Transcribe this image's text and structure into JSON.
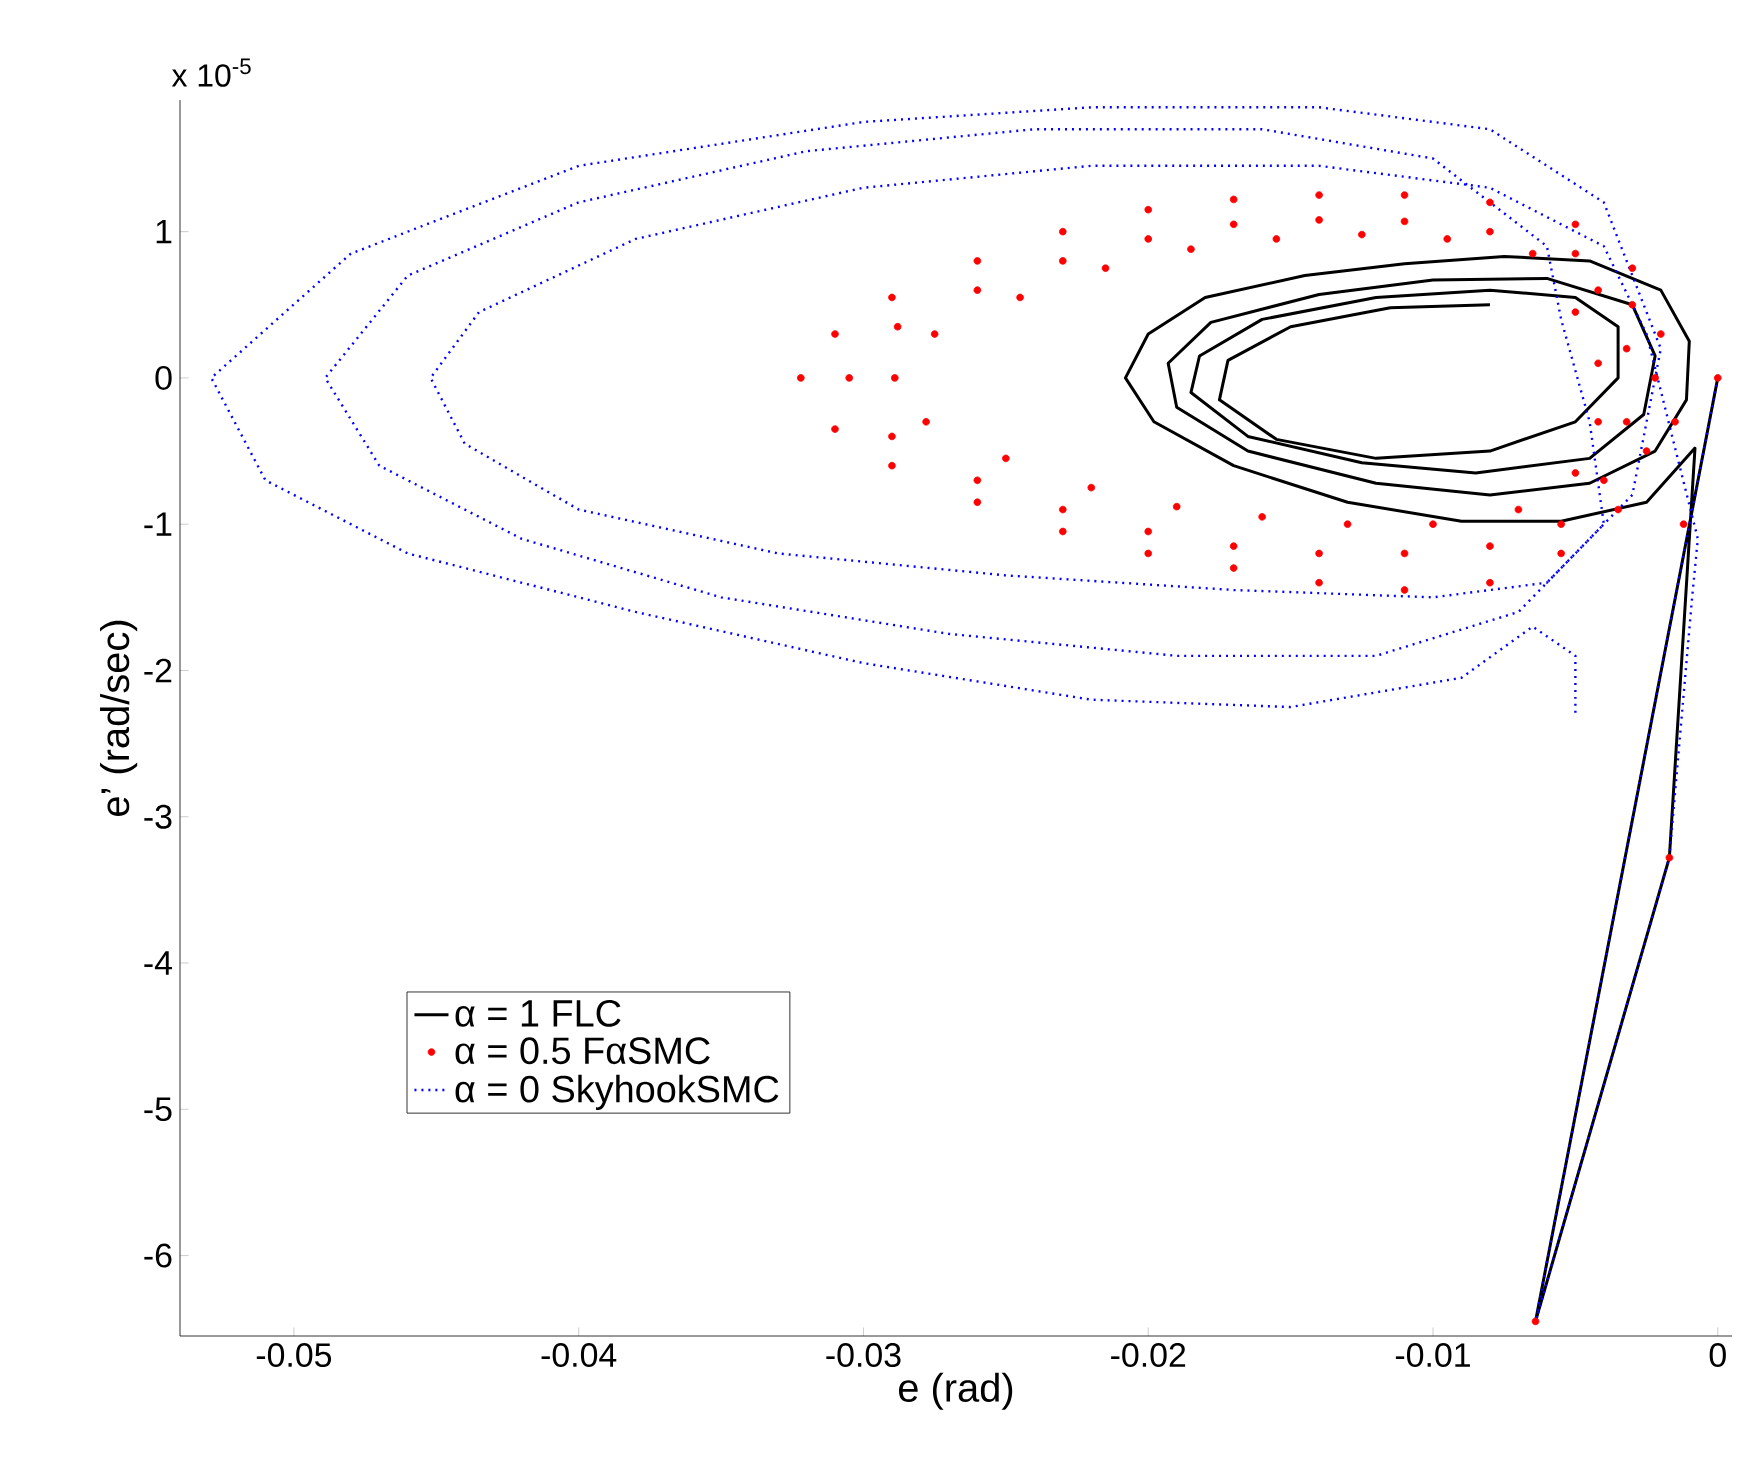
{
  "chart_data": {
    "type": "line",
    "xlabel": "e (rad)",
    "ylabel": "e’ (rad/sec)",
    "annotations": [
      "x 10$^{-5}$"
    ],
    "xlim": [
      -0.054,
      0.0005
    ],
    "ylim": [
      -6.55,
      1.9
    ],
    "xticks": [
      -0.05,
      -0.04,
      -0.03,
      -0.02,
      -0.01,
      0
    ],
    "yticks": [
      -6,
      -5,
      -4,
      -3,
      -2,
      -1,
      0,
      1
    ],
    "legend": "bottom left",
    "grid": false,
    "series": [
      {
        "name": "α = 1 FLC",
        "color": "#000000",
        "line_style": "solid",
        "marker": "none",
        "x": [
          0,
          -0.0064,
          -0.0017,
          -0.0008,
          -0.0025,
          -0.0055,
          -0.009,
          -0.013,
          -0.017,
          -0.0198,
          -0.0208,
          -0.02,
          -0.018,
          -0.0145,
          -0.011,
          -0.0075,
          -0.0045,
          -0.002,
          -0.001,
          -0.0011,
          -0.0022,
          -0.0045,
          -0.008,
          -0.012,
          -0.0165,
          -0.019,
          -0.0193,
          -0.0178,
          -0.014,
          -0.01,
          -0.006,
          -0.003,
          -0.0022,
          -0.0026,
          -0.0045,
          -0.0085,
          -0.0125,
          -0.0165,
          -0.0185,
          -0.0182,
          -0.016,
          -0.012,
          -0.008,
          -0.005,
          -0.0035,
          -0.0035,
          -0.005,
          -0.008,
          -0.012,
          -0.0155,
          -0.0175,
          -0.0172,
          -0.015,
          -0.0115,
          -0.008
        ],
        "values": [
          0,
          -6.45,
          -3.28,
          -0.48,
          -0.85,
          -0.98,
          -0.98,
          -0.85,
          -0.6,
          -0.3,
          0,
          0.3,
          0.55,
          0.7,
          0.78,
          0.83,
          0.8,
          0.6,
          0.25,
          -0.15,
          -0.5,
          -0.72,
          -0.8,
          -0.72,
          -0.5,
          -0.2,
          0.1,
          0.38,
          0.57,
          0.67,
          0.68,
          0.5,
          0.15,
          -0.25,
          -0.55,
          -0.65,
          -0.58,
          -0.4,
          -0.1,
          0.15,
          0.4,
          0.55,
          0.6,
          0.55,
          0.35,
          0,
          -0.3,
          -0.5,
          -0.55,
          -0.42,
          -0.15,
          0.12,
          0.35,
          0.48,
          0.5
        ]
      },
      {
        "name": "α = 0.5 FαSMC",
        "type": "scatter",
        "color": "#ff0000",
        "marker": "circle",
        "x": [
          0,
          -0.0064,
          -0.0017,
          -0.0012,
          -0.0015,
          -0.002,
          -0.003,
          -0.005,
          -0.008,
          -0.011,
          -0.014,
          -0.017,
          -0.02,
          -0.023,
          -0.026,
          -0.029,
          -0.031,
          -0.0322,
          -0.031,
          -0.029,
          -0.026,
          -0.023,
          -0.02,
          -0.017,
          -0.014,
          -0.011,
          -0.008,
          -0.0055,
          -0.0035,
          -0.0025,
          -0.0022,
          -0.003,
          -0.005,
          -0.008,
          -0.011,
          -0.014,
          -0.017,
          -0.02,
          -0.023,
          -0.026,
          -0.0288,
          -0.0305,
          -0.029,
          -0.026,
          -0.023,
          -0.02,
          -0.017,
          -0.014,
          -0.011,
          -0.008,
          -0.0055,
          -0.004,
          -0.0032,
          -0.0032,
          -0.0042,
          -0.0065,
          -0.0095,
          -0.0125,
          -0.0155,
          -0.0185,
          -0.0215,
          -0.0245,
          -0.0275,
          -0.0289,
          -0.0278,
          -0.025,
          -0.022,
          -0.019,
          -0.016,
          -0.013,
          -0.01,
          -0.007,
          -0.005,
          -0.0042,
          -0.0042,
          -0.005
        ],
        "values": [
          0,
          -6.45,
          -3.28,
          -1.0,
          -0.3,
          0.3,
          0.75,
          1.05,
          1.2,
          1.25,
          1.25,
          1.22,
          1.15,
          1.0,
          0.8,
          0.55,
          0.3,
          0,
          -0.35,
          -0.6,
          -0.85,
          -1.05,
          -1.2,
          -1.3,
          -1.4,
          -1.45,
          -1.4,
          -1.2,
          -0.9,
          -0.5,
          0,
          0.5,
          0.85,
          1.0,
          1.07,
          1.08,
          1.05,
          0.95,
          0.8,
          0.6,
          0.35,
          0,
          -0.4,
          -0.7,
          -0.9,
          -1.05,
          -1.15,
          -1.2,
          -1.2,
          -1.15,
          -1.0,
          -0.7,
          -0.3,
          0.2,
          0.6,
          0.85,
          0.95,
          0.98,
          0.95,
          0.88,
          0.75,
          0.55,
          0.3,
          0,
          -0.3,
          -0.55,
          -0.75,
          -0.88,
          -0.95,
          -1.0,
          -1.0,
          -0.9,
          -0.65,
          -0.3,
          0.1,
          0.45
        ]
      },
      {
        "name": "α = 0 SkyhookSMC",
        "color": "#0000ff",
        "line_style": "dotted",
        "marker": "none",
        "x": [
          0,
          -0.0064,
          -0.0017,
          -0.0009,
          -0.0007,
          -0.0025,
          -0.004,
          -0.008,
          -0.014,
          -0.022,
          -0.03,
          -0.038,
          -0.0435,
          -0.0452,
          -0.044,
          -0.04,
          -0.033,
          -0.025,
          -0.017,
          -0.01,
          -0.006,
          -0.004,
          -0.0045,
          -0.0055,
          -0.006,
          -0.01,
          -0.016,
          -0.024,
          -0.032,
          -0.04,
          -0.046,
          -0.0489,
          -0.047,
          -0.042,
          -0.035,
          -0.027,
          -0.019,
          -0.012,
          -0.007,
          -0.003,
          -0.002,
          -0.004,
          -0.008,
          -0.014,
          -0.022,
          -0.03,
          -0.04,
          -0.048,
          -0.0529,
          -0.051,
          -0.046,
          -0.038,
          -0.03,
          -0.022,
          -0.015,
          -0.009,
          -0.0065,
          -0.005,
          -0.005
        ],
        "values": [
          0,
          -6.45,
          -3.28,
          -1.5,
          -1.1,
          0.3,
          0.9,
          1.3,
          1.45,
          1.45,
          1.3,
          0.95,
          0.45,
          0,
          -0.45,
          -0.9,
          -1.2,
          -1.35,
          -1.45,
          -1.5,
          -1.4,
          -1.0,
          -0.3,
          0.4,
          0.9,
          1.5,
          1.7,
          1.7,
          1.55,
          1.2,
          0.7,
          0,
          -0.6,
          -1.1,
          -1.5,
          -1.75,
          -1.9,
          -1.9,
          -1.6,
          -0.8,
          0.2,
          1.2,
          1.7,
          1.85,
          1.85,
          1.75,
          1.45,
          0.85,
          0,
          -0.7,
          -1.2,
          -1.6,
          -1.95,
          -2.2,
          -2.25,
          -2.05,
          -1.7,
          -1.9,
          -2.3
        ]
      }
    ]
  }
}
